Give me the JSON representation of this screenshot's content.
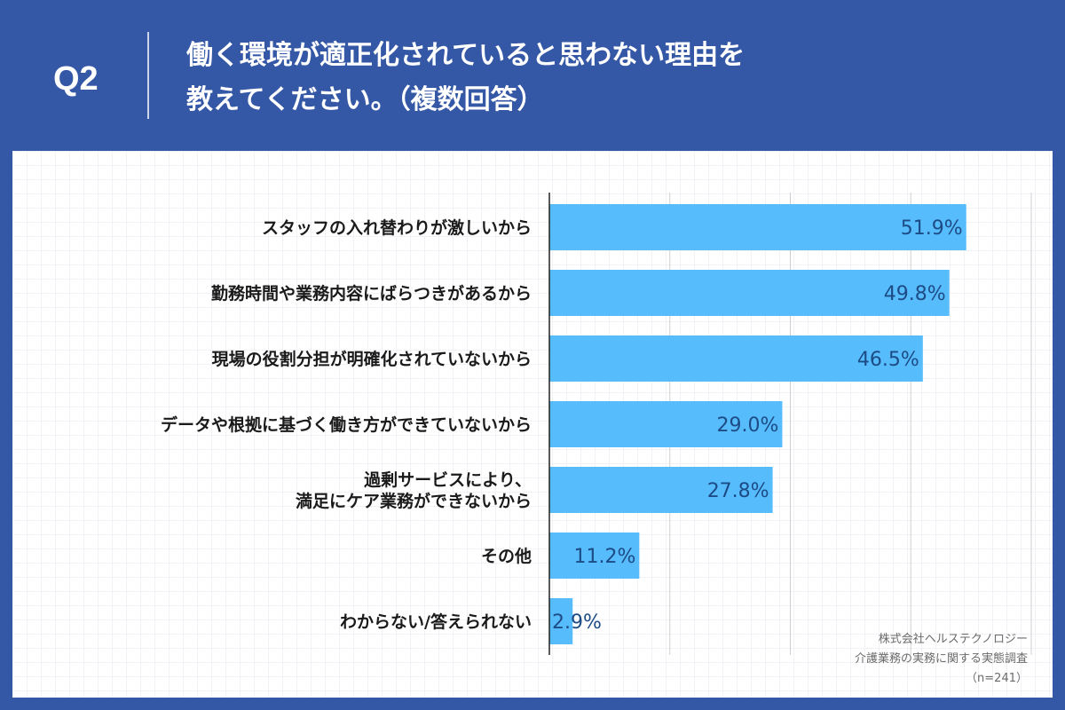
{
  "header": {
    "question_label": "Q2",
    "title_line1": "働く環境が適正化されていると思わない理由を",
    "title_line2": "教えてください。（複数回答）"
  },
  "colors": {
    "header_bg": "#3457a6",
    "bar": "#57bcfb",
    "value_text": "#1c4b86",
    "label_text": "#1a1a1a"
  },
  "chart_data": {
    "type": "bar",
    "orientation": "horizontal",
    "categories": [
      "スタッフの入れ替わりが激しいから",
      "勤務時間や業務内容にばらつきがあるから",
      "現場の役割分担が明確化されていないから",
      "データや根拠に基づく働き方ができていないから",
      "過剰サービスにより、\n満足にケア業務ができないから",
      "その他",
      "わからない/答えられない"
    ],
    "values": [
      51.9,
      49.8,
      46.5,
      29.0,
      27.8,
      11.2,
      2.9
    ],
    "value_labels": [
      "51.9%",
      "49.8%",
      "46.5%",
      "29.0%",
      "27.8%",
      "11.2%",
      "2.9%"
    ],
    "xlim": [
      0,
      60
    ],
    "grid": true
  },
  "credit": {
    "line1": "株式会社ヘルステクノロジー",
    "line2": "介護業務の実務に関する実態調査",
    "line3": "（n=241）"
  }
}
